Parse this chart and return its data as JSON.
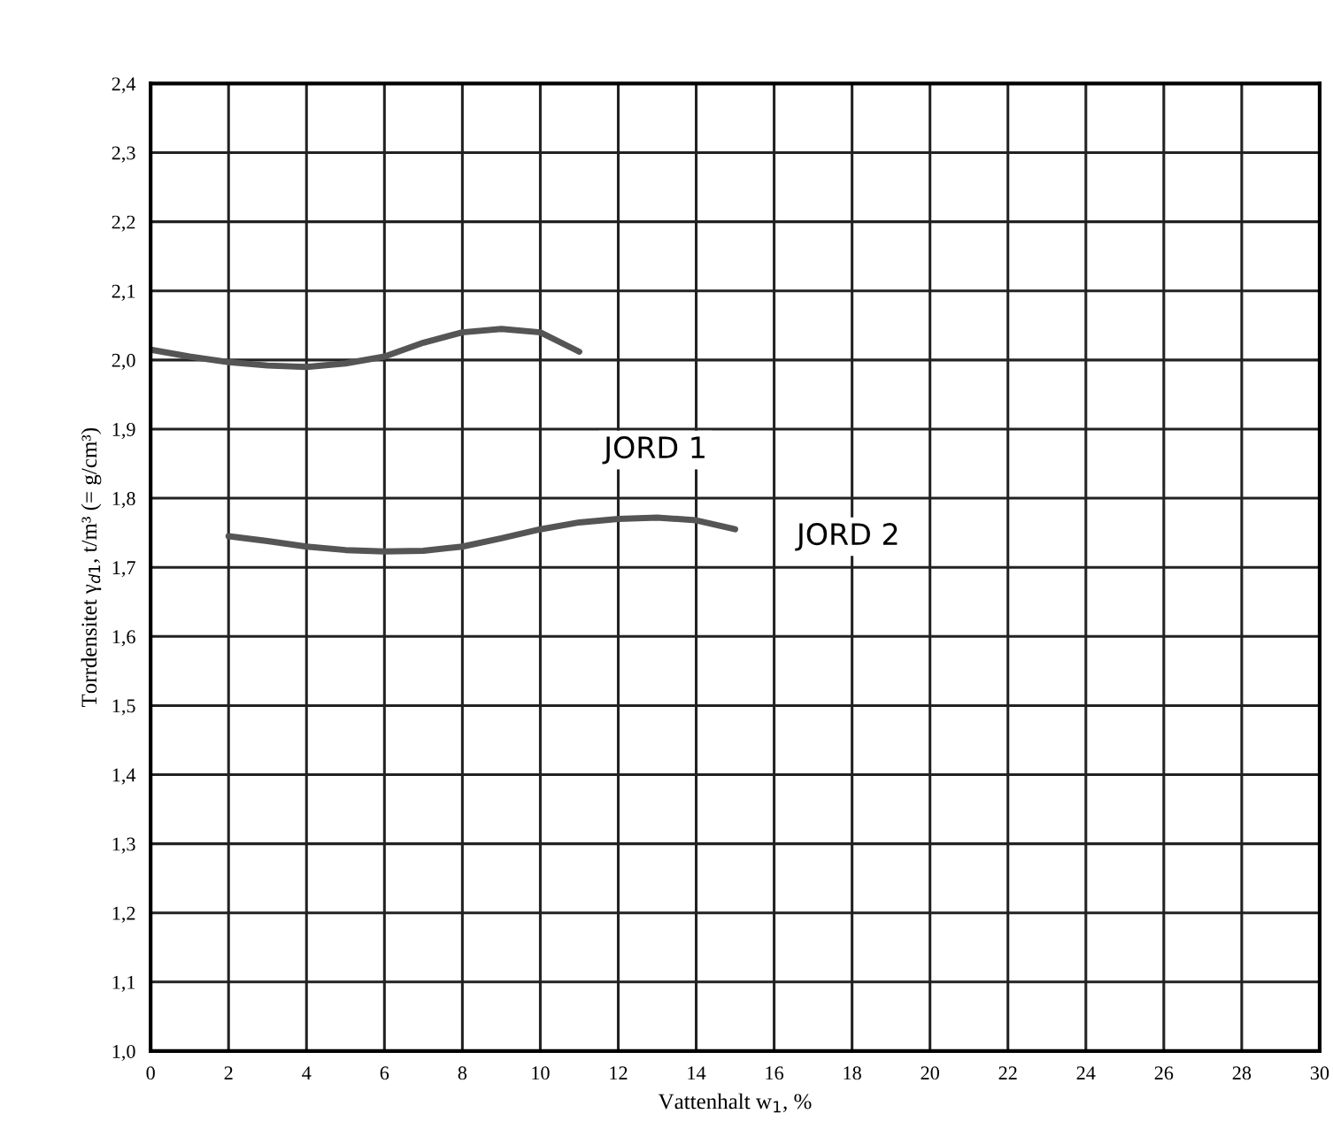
{
  "chart_data": {
    "type": "line",
    "xlabel": "Vattenhalt w$_{1}$, %",
    "ylabel": "Torrdensitet γ$_{d1}$, t/m³ (= g/cm³)",
    "xlim": [
      0,
      30
    ],
    "xticks": [
      0,
      2,
      4,
      6,
      8,
      10,
      12,
      14,
      16,
      18,
      20,
      22,
      24,
      26,
      28,
      30
    ],
    "ylim": [
      1.0,
      2.4
    ],
    "yticks": [
      {
        "value": 1.0,
        "label": "1,0"
      },
      {
        "value": 1.1,
        "label": "1,1"
      },
      {
        "value": 1.2,
        "label": "1,2"
      },
      {
        "value": 1.3,
        "label": "1,3"
      },
      {
        "value": 1.4,
        "label": "1,4"
      },
      {
        "value": 1.5,
        "label": "1,5"
      },
      {
        "value": 1.6,
        "label": "1,6"
      },
      {
        "value": 1.7,
        "label": "1,7"
      },
      {
        "value": 1.8,
        "label": "1,8"
      },
      {
        "value": 1.9,
        "label": "1,9"
      },
      {
        "value": 2.0,
        "label": "2,0"
      },
      {
        "value": 2.1,
        "label": "2,1"
      },
      {
        "value": 2.2,
        "label": "2,2"
      },
      {
        "value": 2.3,
        "label": "2,3"
      },
      {
        "value": 2.4,
        "label": "2,4"
      }
    ],
    "grid": true,
    "marker": "none",
    "line_style": "solid",
    "series": [
      {
        "name": "JORD 1",
        "color": "#555555",
        "x": [
          0,
          1,
          2,
          3,
          4,
          5,
          6,
          7,
          8,
          9,
          10,
          11
        ],
        "values": [
          2.015,
          2.005,
          1.997,
          1.992,
          1.99,
          1.995,
          2.005,
          2.025,
          2.04,
          2.045,
          2.04,
          2.012
        ]
      },
      {
        "name": "JORD 2",
        "color": "#555555",
        "x": [
          2,
          3,
          4,
          5,
          6,
          7,
          8,
          9,
          10,
          11,
          12,
          13,
          14,
          15
        ],
        "values": [
          1.745,
          1.738,
          1.73,
          1.725,
          1.723,
          1.724,
          1.73,
          1.742,
          1.755,
          1.765,
          1.77,
          1.772,
          1.768,
          1.755
        ]
      }
    ]
  }
}
